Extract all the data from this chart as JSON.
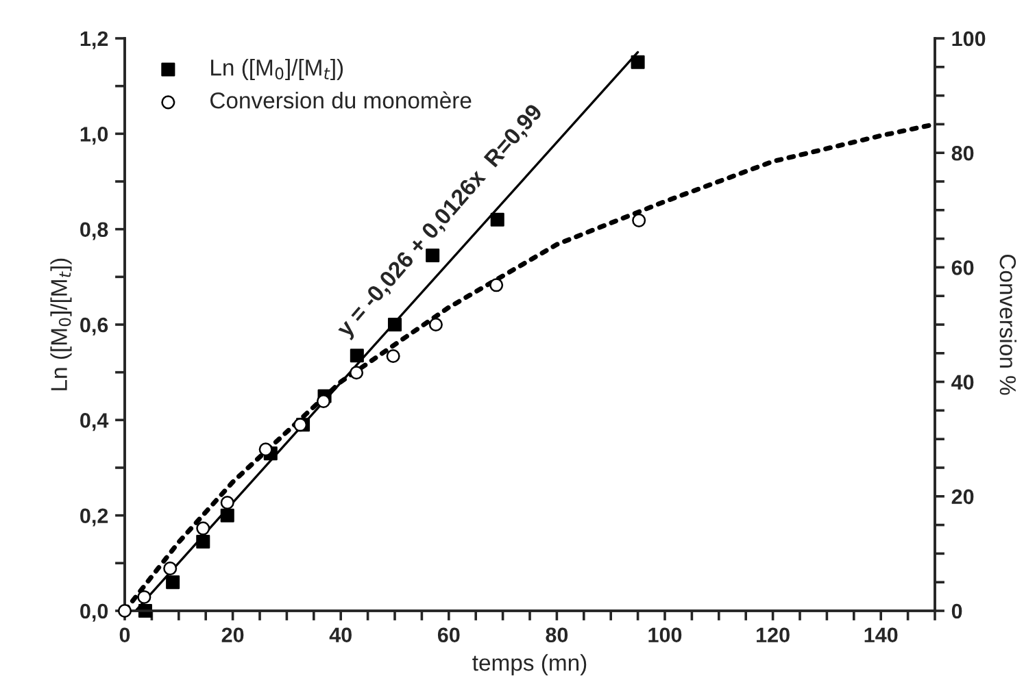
{
  "chart_data": {
    "type": "scatter",
    "xlabel": "temps (mn)",
    "ylabel": "Ln ([M$_{0}$]/[M$_{t}$])",
    "y2label": "Conversion %",
    "legend": "top left",
    "grid": false,
    "xlim": [
      0,
      150
    ],
    "ylim": [
      0,
      1.2
    ],
    "y2lim": [
      0,
      100
    ],
    "xticks": [
      0,
      {
        "value": 5,
        "label": null
      },
      {
        "value": 10,
        "label": null
      },
      {
        "value": 15,
        "label": null
      },
      20,
      {
        "value": 25,
        "label": null
      },
      {
        "value": 30,
        "label": null
      },
      {
        "value": 35,
        "label": null
      },
      40,
      {
        "value": 45,
        "label": null
      },
      {
        "value": 50,
        "label": null
      },
      {
        "value": 55,
        "label": null
      },
      60,
      {
        "value": 65,
        "label": null
      },
      {
        "value": 70,
        "label": null
      },
      {
        "value": 75,
        "label": null
      },
      80,
      {
        "value": 85,
        "label": null
      },
      {
        "value": 90,
        "label": null
      },
      {
        "value": 95,
        "label": null
      },
      100,
      {
        "value": 105,
        "label": null
      },
      {
        "value": 110,
        "label": null
      },
      {
        "value": 115,
        "label": null
      },
      120,
      {
        "value": 125,
        "label": null
      },
      {
        "value": 130,
        "label": null
      },
      {
        "value": 135,
        "label": null
      },
      140,
      {
        "value": 145,
        "label": null
      },
      {
        "value": 150,
        "label": null
      }
    ],
    "yticks": [
      {
        "value": 0,
        "label": "0,0"
      },
      {
        "value": 0.1,
        "label": null
      },
      {
        "value": 0.2,
        "label": "0,2"
      },
      {
        "value": 0.3,
        "label": null
      },
      {
        "value": 0.4,
        "label": "0,4"
      },
      {
        "value": 0.5,
        "label": null
      },
      {
        "value": 0.6,
        "label": "0,6"
      },
      {
        "value": 0.7,
        "label": null
      },
      {
        "value": 0.8,
        "label": "0,8"
      },
      {
        "value": 0.9,
        "label": null
      },
      {
        "value": 1.0,
        "label": "1,0"
      },
      {
        "value": 1.1,
        "label": null
      },
      {
        "value": 1.2,
        "label": "1,2"
      }
    ],
    "y2ticks": [
      0,
      {
        "value": 5,
        "label": null
      },
      {
        "value": 10,
        "label": null
      },
      {
        "value": 15,
        "label": null
      },
      20,
      {
        "value": 25,
        "label": null
      },
      {
        "value": 30,
        "label": null
      },
      {
        "value": 35,
        "label": null
      },
      40,
      {
        "value": 45,
        "label": null
      },
      {
        "value": 50,
        "label": null
      },
      {
        "value": 55,
        "label": null
      },
      60,
      {
        "value": 65,
        "label": null
      },
      {
        "value": 70,
        "label": null
      },
      {
        "value": 75,
        "label": null
      },
      80,
      {
        "value": 85,
        "label": null
      },
      {
        "value": 90,
        "label": null
      },
      {
        "value": 95,
        "label": null
      },
      100
    ],
    "series": [
      {
        "name": "Ln ([M$_{0}$]/[M$_{t}$])",
        "marker": "square",
        "color": "#000000",
        "x": [
          3.8,
          8.9,
          14.5,
          19,
          27,
          33,
          37,
          43,
          50,
          57,
          69,
          95
        ],
        "values": [
          0.0,
          0.06,
          0.145,
          0.2,
          0.33,
          0.39,
          0.45,
          0.535,
          0.6,
          0.745,
          0.82,
          1.15
        ]
      },
      {
        "name": "Conversion du monomère",
        "type": "scatter",
        "marker": "circle",
        "color": "#000000",
        "axis": "y2",
        "x": [
          0,
          3.6,
          8.4,
          14.5,
          19,
          26.1,
          32.5,
          36.8,
          42.9,
          49.7,
          57.6,
          68.8,
          95.2
        ],
        "values": [
          0,
          2.4,
          7.4,
          14.4,
          18.9,
          28.2,
          32.5,
          36.6,
          41.6,
          44.5,
          50,
          56.9,
          68.2
        ]
      },
      {
        "type": "line",
        "line_style": "solid",
        "color": "#000000",
        "x": [
          2,
          95
        ],
        "values": [
          0.0,
          1.171
        ]
      },
      {
        "type": "line",
        "line_style": "dotted",
        "color": "#000000",
        "axis": "y2",
        "x": [
          0,
          10,
          20,
          40,
          60,
          80,
          100,
          120,
          140,
          150
        ],
        "values": [
          0,
          12,
          22.5,
          40,
          53,
          64,
          71.5,
          78.5,
          83,
          85
        ]
      }
    ],
    "annotations": [
      "y = -0,026 + 0,0126x  R=0,99"
    ]
  }
}
